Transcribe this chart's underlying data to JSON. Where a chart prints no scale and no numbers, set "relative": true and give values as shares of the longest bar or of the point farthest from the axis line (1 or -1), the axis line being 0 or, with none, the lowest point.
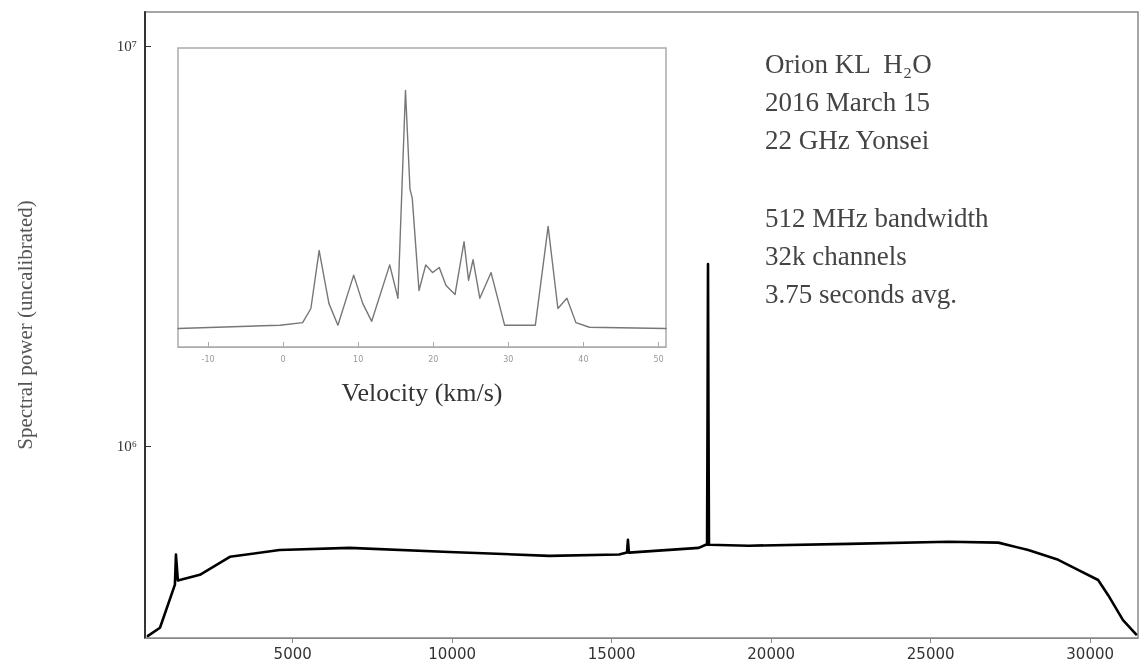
{
  "chart_data": [
    {
      "type": "line",
      "ylabel": "Spectral power (uncalibrated)",
      "log": true,
      "grid": false,
      "marker": "none",
      "line_style": "solid",
      "xlim": [
        370,
        31500
      ],
      "xticks": [
        5000,
        10000,
        15000,
        20000,
        25000,
        30000
      ],
      "ylim": [
        330000,
        12200000
      ],
      "yticks": [
        {
          "value": 1000000,
          "label": "10⁶"
        },
        {
          "value": 10000000,
          "label": "10⁷"
        }
      ],
      "annotations": [
        "Orion KL  H₂O",
        "2016 March 15",
        "22 GHz Yonsei",
        "512 MHz bandwidth",
        "32k channels",
        "3.75 seconds avg."
      ],
      "series": [
        {
          "color": "#000000",
          "x": [
            463,
            840,
            1308,
            1340,
            1400,
            2090,
            3030,
            4590,
            6780,
            9910,
            13040,
            15230,
            15480,
            15510,
            15540,
            17730,
            17950,
            17990,
            18005,
            18020,
            18035,
            18050,
            19300,
            22430,
            25560,
            27120,
            28060,
            29000,
            29620,
            30250,
            30560,
            31030,
            31440
          ],
          "values": [
            334000,
            350000,
            449000,
            534000,
            460000,
            475000,
            527000,
            548000,
            555000,
            542000,
            530000,
            534000,
            540000,
            581000,
            540000,
            555000,
            565000,
            565000,
            1160000,
            2850000,
            1160000,
            565000,
            562000,
            568000,
            575000,
            572000,
            548000,
            518000,
            489000,
            461000,
            423000,
            366000,
            337000
          ]
        }
      ]
    },
    {
      "type": "line",
      "xlabel": "Velocity (km/s)",
      "relative": true,
      "grid": false,
      "marker": "none",
      "line_style": "solid",
      "xlim": [
        -14,
        51
      ],
      "xticks": [
        -10,
        0,
        10,
        20,
        30,
        40,
        50
      ],
      "series": [
        {
          "color": "#777777",
          "x": [
            -14,
            -0.4,
            2.6,
            3.7,
            4.8,
            6.1,
            7.3,
            9.4,
            10.6,
            11.8,
            14.2,
            15.3,
            16.3,
            16.9,
            17.2,
            18.1,
            19.0,
            19.9,
            20.8,
            21.7,
            22.9,
            24.1,
            24.7,
            25.3,
            26.2,
            27.7,
            29.5,
            33.6,
            35.3,
            36.6,
            37.8,
            39.0,
            40.8,
            51
          ],
          "values": [
            0.072,
            0.085,
            0.095,
            0.15,
            0.376,
            0.17,
            0.085,
            0.28,
            0.17,
            0.1,
            0.32,
            0.19,
            1.0,
            0.615,
            0.58,
            0.22,
            0.32,
            0.29,
            0.31,
            0.24,
            0.205,
            0.41,
            0.26,
            0.34,
            0.19,
            0.29,
            0.085,
            0.085,
            0.47,
            0.15,
            0.19,
            0.095,
            0.077,
            0.072
          ]
        }
      ]
    }
  ]
}
